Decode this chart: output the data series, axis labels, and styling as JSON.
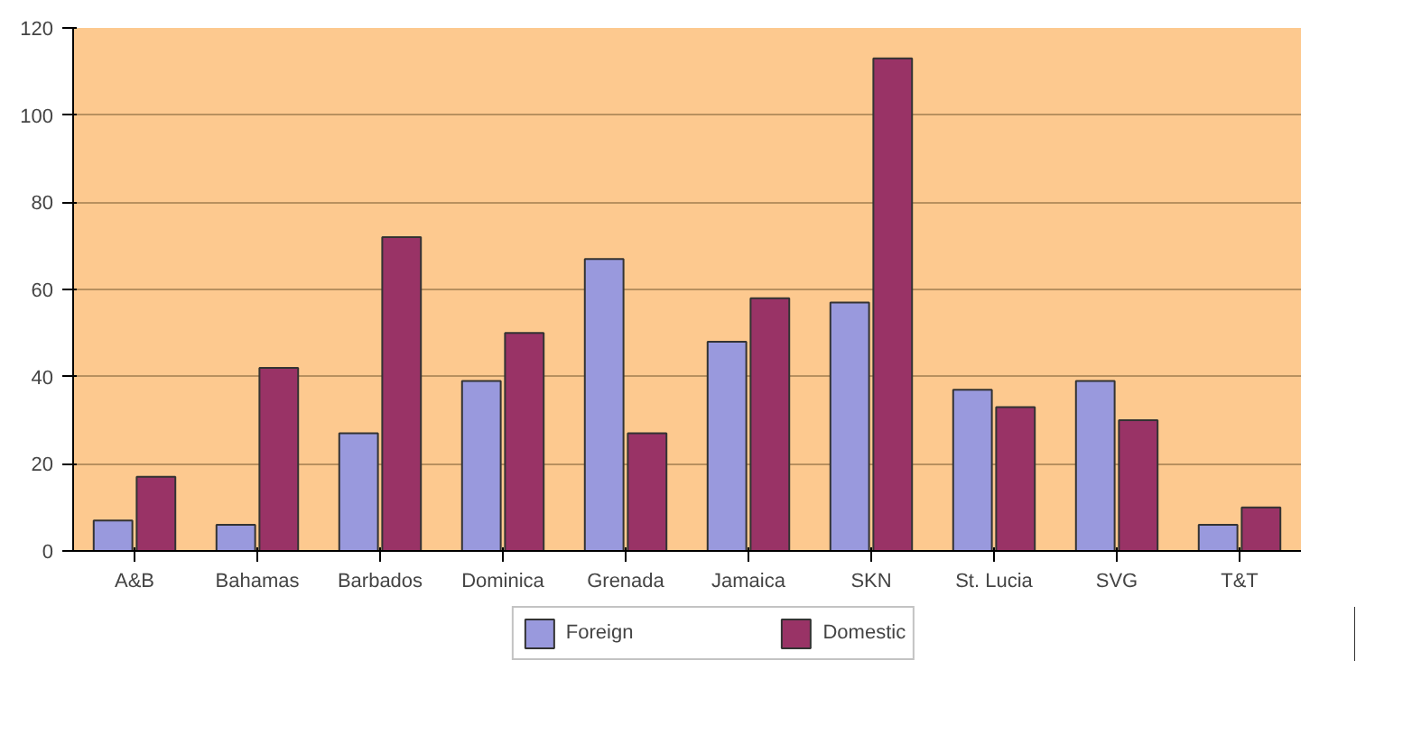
{
  "chart_data": {
    "type": "bar",
    "categories": [
      "A&B",
      "Bahamas",
      "Barbados",
      "Dominica",
      "Grenada",
      "Jamaica",
      "SKN",
      "St. Lucia",
      "SVG",
      "T&T"
    ],
    "series": [
      {
        "name": "Foreign",
        "color": "#9999dd",
        "values": [
          7,
          6,
          27,
          39,
          67,
          48,
          57,
          37,
          39,
          6
        ]
      },
      {
        "name": "Domestic",
        "color": "#993366",
        "values": [
          17,
          42,
          72,
          50,
          27,
          58,
          113,
          33,
          30,
          10
        ]
      }
    ],
    "ylim": [
      0,
      120
    ],
    "yticks": [
      0,
      20,
      40,
      60,
      80,
      100,
      120
    ],
    "grid": "y",
    "legend": "bottom"
  }
}
